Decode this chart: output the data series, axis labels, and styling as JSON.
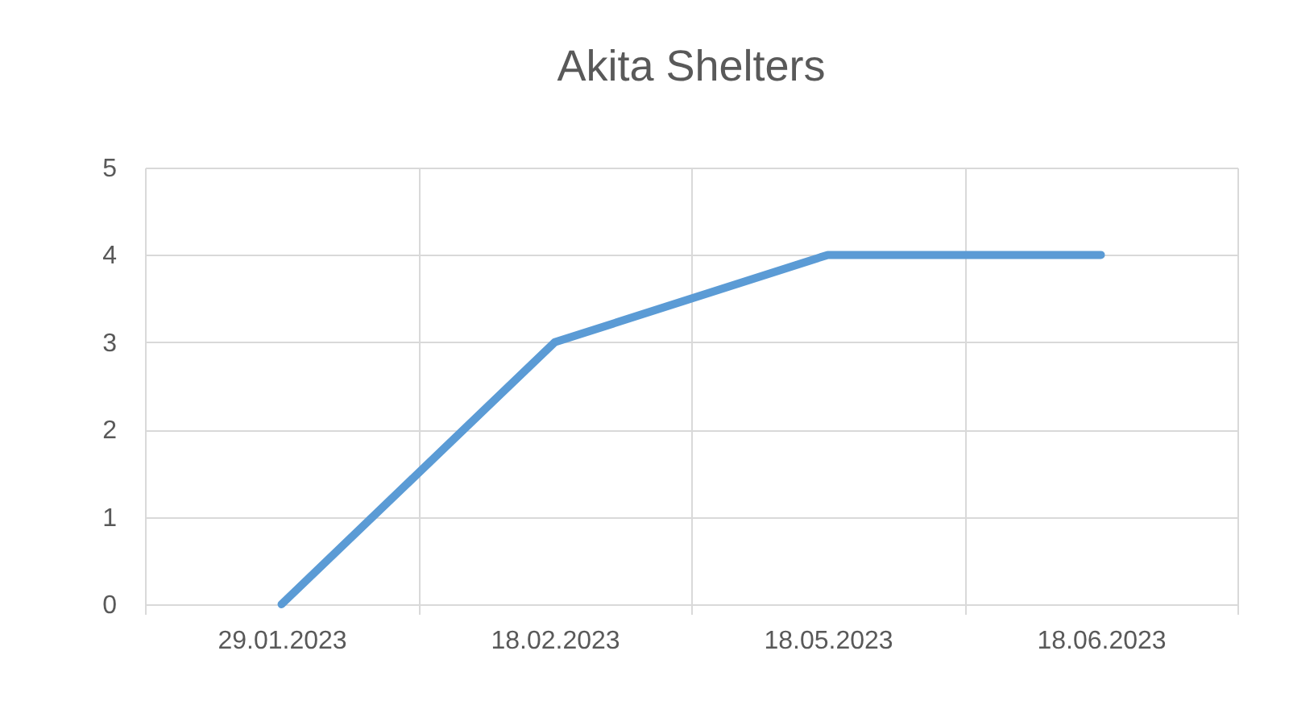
{
  "chart_data": {
    "type": "line",
    "title": "Akita Shelters",
    "categories": [
      "29.01.2023",
      "18.02.2023",
      "18.05.2023",
      "18.06.2023"
    ],
    "series": [
      {
        "color": "#5b9bd5",
        "values": [
          0,
          3,
          4,
          4
        ]
      }
    ],
    "ylim": [
      0,
      5
    ],
    "yticks": [
      0,
      1,
      2,
      3,
      4,
      5
    ],
    "grid": true,
    "marker": "none",
    "line_style": "solid"
  }
}
